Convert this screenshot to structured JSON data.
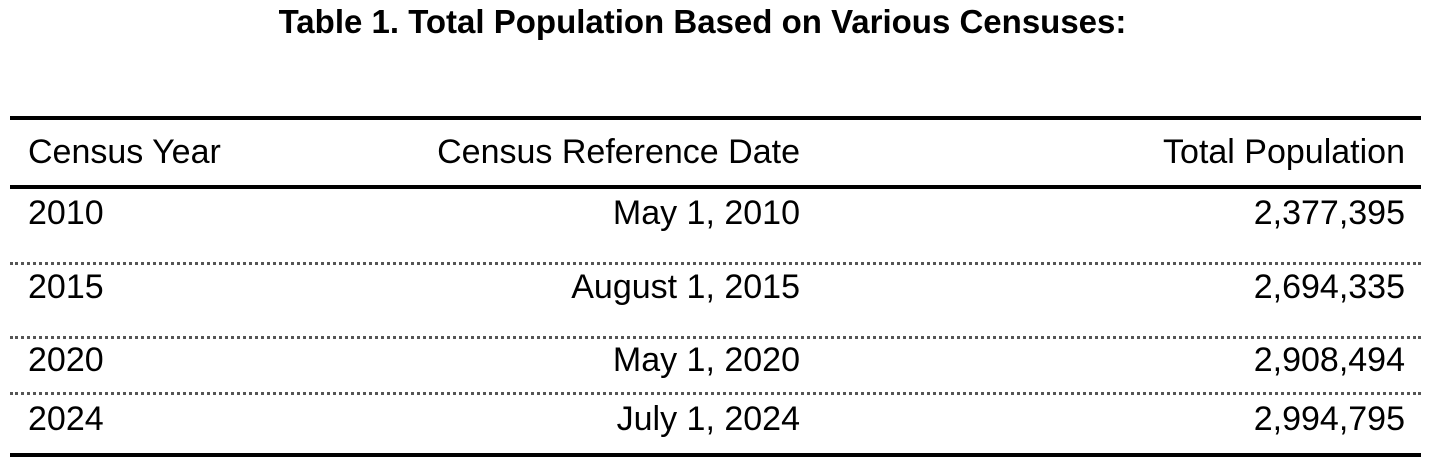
{
  "header": {
    "title": "Table 1. Total Population Based on Various Censuses:"
  },
  "table": {
    "columns": [
      "Census Year",
      "Census Reference Date",
      "Total Population"
    ],
    "rows": [
      [
        "2010",
        "May 1, 2010",
        "2,377,395"
      ],
      [
        "2015",
        "August 1, 2015",
        "2,694,335"
      ],
      [
        "2020",
        "May 1, 2020",
        "2,908,494"
      ],
      [
        "2024",
        "July 1, 2024",
        "2,994,795"
      ]
    ]
  }
}
